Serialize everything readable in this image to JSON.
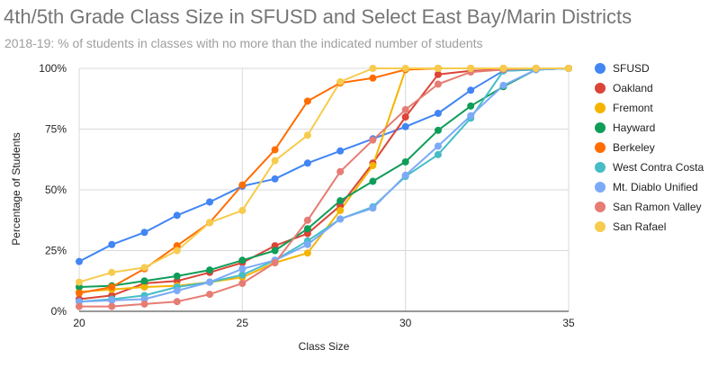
{
  "chart_data": {
    "type": "line",
    "title": "4th/5th Grade Class Size in SFUSD and Select East Bay/Marin Districts",
    "subtitle": "2018-19: % of students in classes with no more than the indicated number of students",
    "xlabel": "Class Size",
    "ylabel": "Percentage of Students",
    "x": [
      20,
      21,
      22,
      23,
      24,
      25,
      26,
      27,
      28,
      29,
      30,
      31,
      32,
      33,
      34,
      35
    ],
    "xlim": [
      20,
      35
    ],
    "ylim": [
      0,
      100
    ],
    "x_ticks": [
      "20",
      "25",
      "30",
      "35"
    ],
    "y_ticks": [
      "0%",
      "25%",
      "50%",
      "75%",
      "100%"
    ],
    "grid": true,
    "legend_position": "right",
    "series": [
      {
        "name": "SFUSD",
        "color": "#4285f4",
        "values": [
          20.5,
          27.5,
          32.5,
          39.5,
          45,
          51.5,
          54.5,
          61,
          66,
          71,
          76,
          81.5,
          91,
          99,
          99.5,
          100
        ]
      },
      {
        "name": "Oakland",
        "color": "#db4437",
        "values": [
          5,
          6.5,
          11.5,
          12.5,
          16,
          20,
          27,
          32,
          43.5,
          61,
          80,
          97.5,
          99,
          99.5,
          100,
          100
        ]
      },
      {
        "name": "Fremont",
        "color": "#f4b400",
        "values": [
          8,
          9,
          10,
          10.5,
          12,
          14,
          20,
          24,
          41.5,
          60,
          99.5,
          100,
          100,
          100,
          100,
          100
        ]
      },
      {
        "name": "Hayward",
        "color": "#0f9d58",
        "values": [
          10,
          10.5,
          12.5,
          14.5,
          17,
          21,
          25,
          34,
          45.5,
          53.5,
          61.5,
          74.5,
          84.5,
          92.5,
          99.5,
          100
        ]
      },
      {
        "name": "Berkeley",
        "color": "#ff6d00",
        "values": [
          7.5,
          10,
          17.5,
          27,
          36.5,
          52,
          66.5,
          86.5,
          94,
          96,
          99.5,
          100,
          100,
          100,
          100,
          100
        ]
      },
      {
        "name": "West Contra Costa",
        "color": "#46bdc6",
        "values": [
          4,
          5,
          6.5,
          10,
          12,
          15,
          21,
          29,
          38,
          43,
          55.5,
          64.5,
          79.5,
          99,
          99.5,
          100
        ]
      },
      {
        "name": "Mt. Diablo Unified",
        "color": "#7baaf7",
        "values": [
          4,
          4.5,
          5,
          8.5,
          12,
          17.5,
          21,
          27.5,
          38,
          42.5,
          56,
          68,
          80.5,
          93,
          99.5,
          100
        ]
      },
      {
        "name": "San Ramon Valley",
        "color": "#e67c73",
        "values": [
          2,
          2,
          3,
          4,
          7,
          11.5,
          20,
          37.5,
          57.5,
          70.5,
          83,
          93.5,
          98.5,
          99.5,
          100,
          100
        ]
      },
      {
        "name": "San Rafael",
        "color": "#f7cb4d",
        "values": [
          12,
          16,
          18,
          25,
          36.5,
          41.5,
          62,
          72.5,
          94.5,
          100,
          100,
          100,
          100,
          100,
          100,
          100
        ]
      }
    ]
  }
}
